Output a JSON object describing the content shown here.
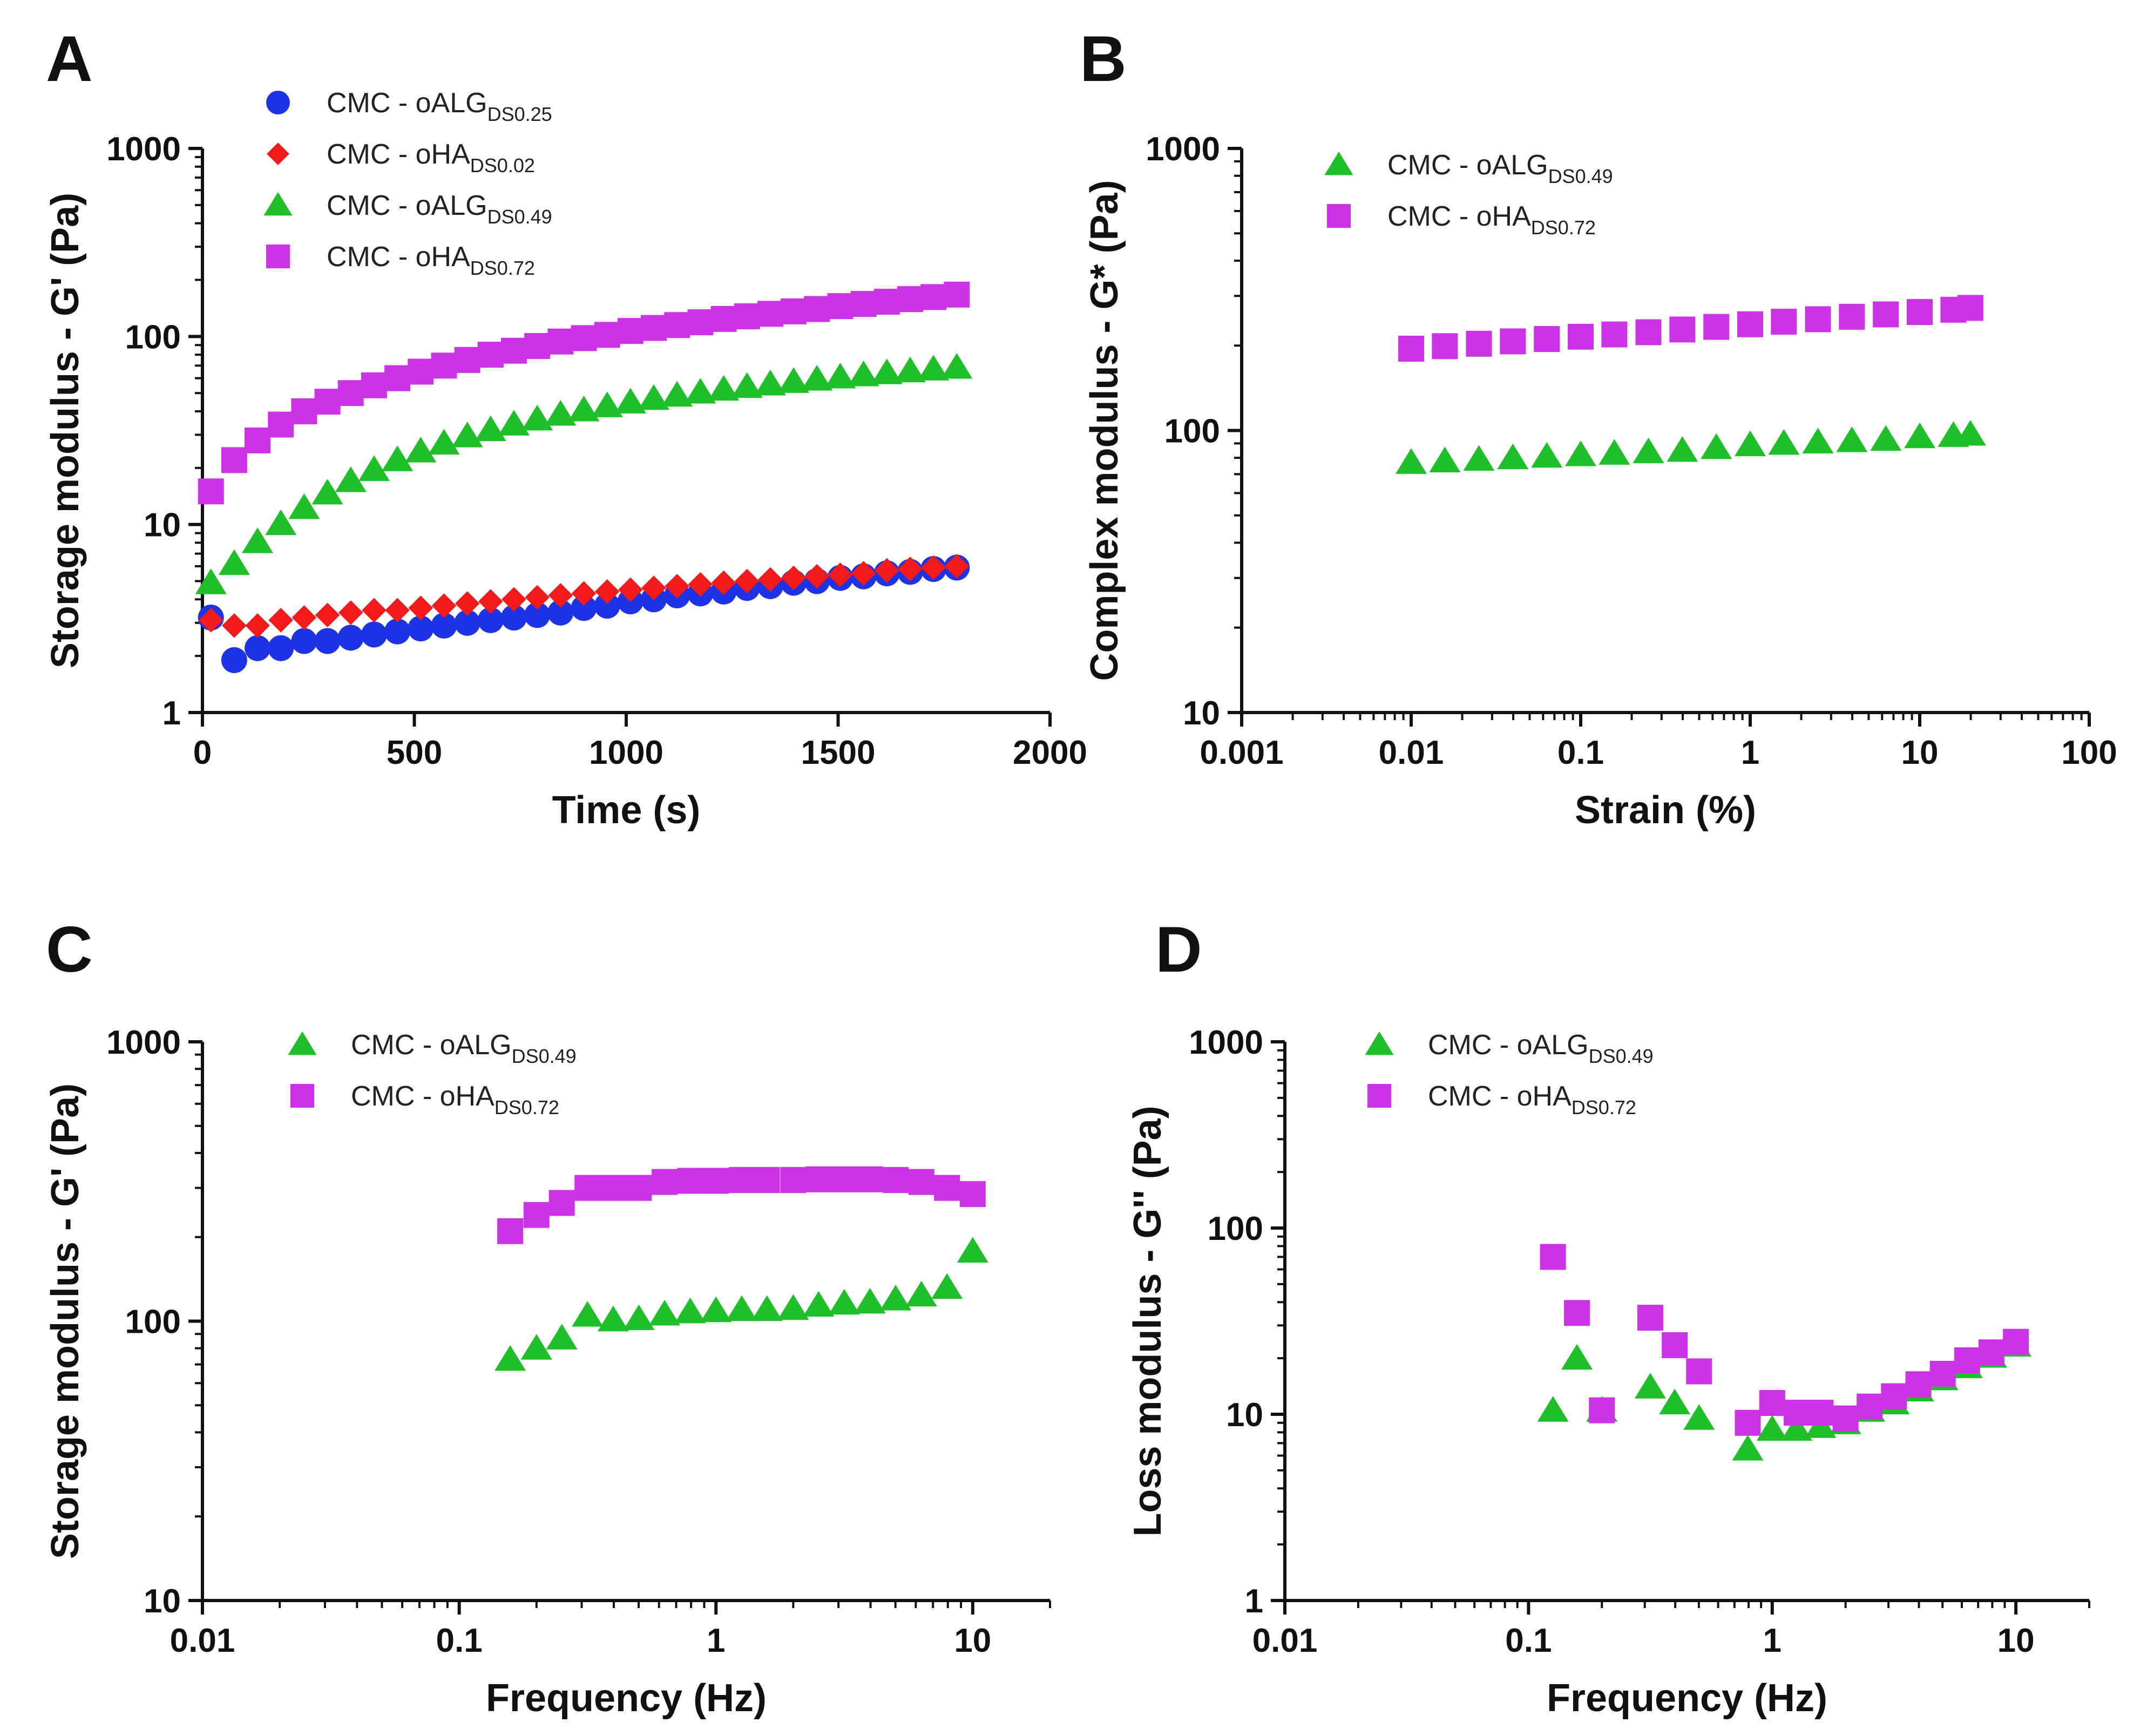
{
  "colors": {
    "oALG_DS025": "#1f33e6",
    "oHA_DS002": "#f21a1a",
    "oALG_DS049": "#1fbf2a",
    "oHA_DS072": "#cc33e6"
  },
  "chart_data": [
    {
      "id": "A",
      "letter": "A",
      "type": "scatter",
      "xscale": "linear",
      "yscale": "log",
      "xlabel": "Time (s)",
      "ylabel": "Storage modulus - G' (Pa)",
      "xlim": [
        0,
        2000
      ],
      "ylim": [
        1,
        1000
      ],
      "xticks": [
        {
          "v": 0,
          "label": "0"
        },
        {
          "v": 500,
          "label": "500"
        },
        {
          "v": 1000,
          "label": "1000"
        },
        {
          "v": 1500,
          "label": "1500"
        },
        {
          "v": 2000,
          "label": "2000"
        }
      ],
      "yticks": [
        {
          "v": 1,
          "label": "1"
        },
        {
          "v": 10,
          "label": "10"
        },
        {
          "v": 100,
          "label": "100"
        },
        {
          "v": 1000,
          "label": "1000"
        }
      ],
      "legend_position": "top-left",
      "series": [
        {
          "key": "oALG_DS025",
          "marker": "circle",
          "name_main": "CMC - oALG",
          "name_sub": "DS0.25",
          "x": [
            20,
            75,
            130,
            185,
            240,
            295,
            350,
            405,
            460,
            515,
            570,
            625,
            680,
            735,
            790,
            845,
            900,
            955,
            1010,
            1065,
            1120,
            1175,
            1230,
            1285,
            1340,
            1395,
            1450,
            1505,
            1560,
            1615,
            1670,
            1725,
            1780
          ],
          "y": [
            3.2,
            1.9,
            2.2,
            2.2,
            2.4,
            2.4,
            2.5,
            2.6,
            2.7,
            2.8,
            2.9,
            3.0,
            3.1,
            3.2,
            3.3,
            3.4,
            3.6,
            3.7,
            3.9,
            4.0,
            4.2,
            4.3,
            4.4,
            4.6,
            4.7,
            4.9,
            5.0,
            5.2,
            5.3,
            5.5,
            5.6,
            5.8,
            5.9
          ]
        },
        {
          "key": "oHA_DS002",
          "marker": "diamond",
          "name_main": "CMC - oHA",
          "name_sub": "DS0.02",
          "x": [
            20,
            75,
            130,
            185,
            240,
            295,
            350,
            405,
            460,
            515,
            570,
            625,
            680,
            735,
            790,
            845,
            900,
            955,
            1010,
            1065,
            1120,
            1175,
            1230,
            1285,
            1340,
            1395,
            1450,
            1505,
            1560,
            1615,
            1670,
            1725,
            1780
          ],
          "y": [
            3.1,
            2.9,
            2.9,
            3.1,
            3.2,
            3.3,
            3.4,
            3.5,
            3.5,
            3.6,
            3.7,
            3.8,
            3.9,
            4.0,
            4.1,
            4.2,
            4.3,
            4.4,
            4.5,
            4.6,
            4.7,
            4.8,
            4.9,
            5.0,
            5.1,
            5.2,
            5.3,
            5.4,
            5.5,
            5.7,
            5.8,
            5.9,
            6.0
          ]
        },
        {
          "key": "oALG_DS049",
          "marker": "triangle",
          "name_main": "CMC - oALG",
          "name_sub": "DS0.49",
          "x": [
            20,
            75,
            130,
            185,
            240,
            295,
            350,
            405,
            460,
            515,
            570,
            625,
            680,
            735,
            790,
            845,
            900,
            955,
            1010,
            1065,
            1120,
            1175,
            1230,
            1285,
            1340,
            1395,
            1450,
            1505,
            1560,
            1615,
            1670,
            1725,
            1780
          ],
          "y": [
            4.9,
            6.2,
            8.1,
            10.1,
            12.3,
            14.7,
            17.1,
            19.6,
            22.1,
            24.6,
            27.1,
            29.6,
            31.9,
            34.2,
            36.4,
            38.6,
            40.7,
            42.8,
            44.8,
            46.8,
            48.7,
            50.6,
            52.4,
            54.2,
            55.9,
            57.6,
            59.3,
            60.9,
            62.5,
            64.1,
            65.6,
            67.1,
            68.6
          ]
        },
        {
          "key": "oHA_DS072",
          "marker": "square",
          "name_main": "CMC - oHA",
          "name_sub": "DS0.72",
          "x": [
            20,
            75,
            130,
            185,
            240,
            295,
            350,
            405,
            460,
            515,
            570,
            625,
            680,
            735,
            790,
            845,
            900,
            955,
            1010,
            1065,
            1120,
            1175,
            1230,
            1285,
            1340,
            1395,
            1450,
            1505,
            1560,
            1615,
            1670,
            1725,
            1780
          ],
          "y": [
            15,
            22,
            28,
            34,
            40,
            45,
            50,
            55,
            60,
            65,
            70,
            75,
            80,
            84,
            89,
            94,
            98,
            102,
            107,
            111,
            115,
            119,
            124,
            128,
            132,
            136,
            140,
            145,
            149,
            153,
            158,
            162,
            167
          ]
        }
      ]
    },
    {
      "id": "B",
      "letter": "B",
      "type": "scatter",
      "xscale": "log",
      "yscale": "log",
      "xlabel": "Strain (%)",
      "ylabel": "Complex modulus - G* (Pa)",
      "xlim": [
        0.001,
        100
      ],
      "ylim": [
        10,
        1000
      ],
      "xticks": [
        {
          "v": 0.001,
          "label": "0.001"
        },
        {
          "v": 0.01,
          "label": "0.01"
        },
        {
          "v": 0.1,
          "label": "0.1"
        },
        {
          "v": 1,
          "label": "1"
        },
        {
          "v": 10,
          "label": "10"
        },
        {
          "v": 100,
          "label": "100"
        }
      ],
      "yticks": [
        {
          "v": 10,
          "label": "10"
        },
        {
          "v": 100,
          "label": "100"
        },
        {
          "v": 1000,
          "label": "1000"
        }
      ],
      "legend_position": "top-left",
      "series": [
        {
          "key": "oALG_DS049",
          "marker": "triangle",
          "name_main": "CMC - oALG",
          "name_sub": "DS0.49",
          "x": [
            0.01,
            0.0158,
            0.0251,
            0.0398,
            0.0631,
            0.1,
            0.158,
            0.251,
            0.398,
            0.631,
            1,
            1.58,
            2.51,
            3.98,
            6.31,
            10,
            15.8,
            19.9
          ],
          "y": [
            77,
            78,
            79,
            80,
            81,
            82,
            83,
            84,
            85,
            87,
            89,
            90,
            91,
            92,
            93,
            95,
            96,
            97
          ]
        },
        {
          "key": "oHA_DS072",
          "marker": "square",
          "name_main": "CMC - oHA",
          "name_sub": "DS0.72",
          "x": [
            0.01,
            0.0158,
            0.0251,
            0.0398,
            0.0631,
            0.1,
            0.158,
            0.251,
            0.398,
            0.631,
            1,
            1.58,
            2.51,
            3.98,
            6.31,
            10,
            15.8,
            19.9
          ],
          "y": [
            195,
            199,
            203,
            207,
            211,
            215,
            219,
            223,
            228,
            233,
            238,
            243,
            248,
            253,
            258,
            263,
            268,
            272
          ]
        }
      ]
    },
    {
      "id": "C",
      "letter": "C",
      "type": "scatter",
      "xscale": "log",
      "yscale": "log",
      "xlabel": "Frequency (Hz)",
      "ylabel": "Storage modulus - G' (Pa)",
      "xlim": [
        0.01,
        20
      ],
      "ylim": [
        10,
        1000
      ],
      "xticks": [
        {
          "v": 0.01,
          "label": "0.01"
        },
        {
          "v": 0.1,
          "label": "0.1"
        },
        {
          "v": 1,
          "label": "1"
        },
        {
          "v": 10,
          "label": "10"
        }
      ],
      "yticks": [
        {
          "v": 10,
          "label": "10"
        },
        {
          "v": 100,
          "label": "100"
        },
        {
          "v": 1000,
          "label": "1000"
        }
      ],
      "legend_position": "top-left",
      "series": [
        {
          "key": "oALG_DS049",
          "marker": "triangle",
          "name_main": "CMC - oALG",
          "name_sub": "DS0.49",
          "x": [
            0.158,
            0.2,
            0.251,
            0.316,
            0.398,
            0.501,
            0.631,
            0.794,
            1,
            1.26,
            1.58,
            2,
            2.51,
            3.16,
            3.98,
            5.01,
            6.31,
            7.94,
            10
          ],
          "y": [
            73,
            80,
            87,
            105,
            101,
            102,
            106,
            108,
            109,
            110,
            110,
            111,
            114,
            116,
            117,
            120,
            124,
            132,
            178
          ]
        },
        {
          "key": "oHA_DS072",
          "marker": "square",
          "name_main": "CMC - oHA",
          "name_sub": "DS0.72",
          "x": [
            0.158,
            0.2,
            0.251,
            0.316,
            0.398,
            0.501,
            0.631,
            0.794,
            1,
            1.26,
            1.58,
            2,
            2.51,
            3.16,
            3.98,
            5.01,
            6.31,
            7.94,
            10
          ],
          "y": [
            210,
            240,
            265,
            300,
            300,
            300,
            315,
            318,
            318,
            320,
            320,
            320,
            322,
            322,
            322,
            320,
            315,
            300,
            285
          ]
        }
      ]
    },
    {
      "id": "D",
      "letter": "D",
      "type": "scatter",
      "xscale": "log",
      "yscale": "log",
      "xlabel": "Frequency (Hz)",
      "ylabel": "Loss modulus - G'' (Pa)",
      "xlim": [
        0.01,
        20
      ],
      "ylim": [
        1,
        1000
      ],
      "xticks": [
        {
          "v": 0.01,
          "label": "0.01"
        },
        {
          "v": 0.1,
          "label": "0.1"
        },
        {
          "v": 1,
          "label": "1"
        },
        {
          "v": 10,
          "label": "10"
        }
      ],
      "yticks": [
        {
          "v": 1,
          "label": "1"
        },
        {
          "v": 10,
          "label": "10"
        },
        {
          "v": 100,
          "label": "100"
        },
        {
          "v": 1000,
          "label": "1000"
        }
      ],
      "legend_position": "top-left",
      "series": [
        {
          "key": "oALG_DS049",
          "marker": "triangle",
          "name_main": "CMC - oALG",
          "name_sub": "DS0.49",
          "x": [
            0.126,
            0.158,
            0.2,
            0.316,
            0.398,
            0.501,
            0.794,
            1,
            1.26,
            1.58,
            2,
            2.51,
            3.16,
            3.98,
            5.01,
            6.31,
            7.94,
            10
          ],
          "y": [
            10.5,
            20,
            10.5,
            14,
            11.5,
            9.5,
            6.5,
            8.3,
            8.3,
            8.6,
            9,
            10.5,
            11.5,
            13.5,
            15.5,
            18,
            20.5,
            23.5
          ]
        },
        {
          "key": "oHA_DS072",
          "marker": "square",
          "name_main": "CMC - oHA",
          "name_sub": "DS0.72",
          "x": [
            0.126,
            0.158,
            0.2,
            0.316,
            0.398,
            0.501,
            0.794,
            1,
            1.26,
            1.58,
            2,
            2.51,
            3.16,
            3.98,
            5.01,
            6.31,
            7.94,
            10
          ],
          "y": [
            70,
            35,
            10.5,
            33,
            23.5,
            17,
            9,
            11.5,
            10.2,
            10.2,
            9.5,
            11,
            12.5,
            14.5,
            16.5,
            19.5,
            21.5,
            24.5
          ]
        }
      ]
    }
  ]
}
